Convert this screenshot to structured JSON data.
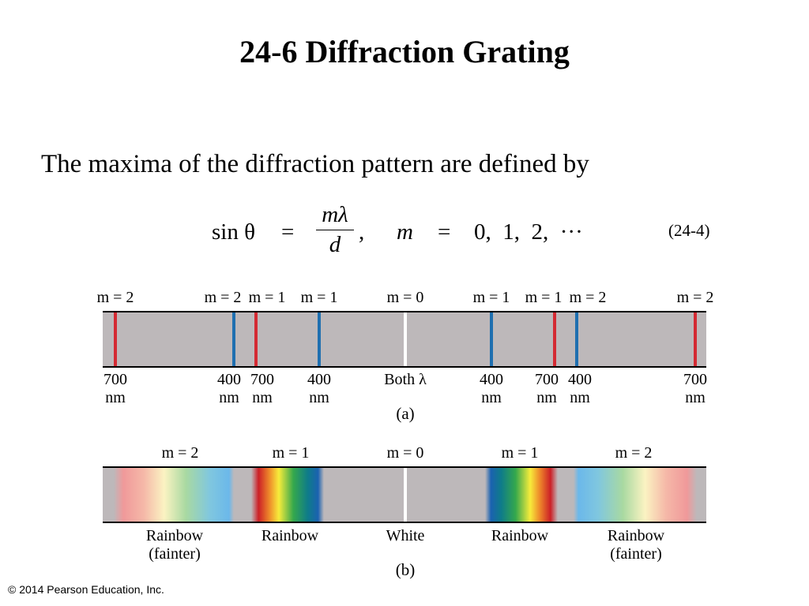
{
  "slide": {
    "title": "24-6 Diffraction Grating",
    "body_text": "The maxima of the diffraction pattern are defined by",
    "equation": {
      "lhs": "sin θ",
      "equals": "=",
      "numerator": "mλ",
      "denominator": "d",
      "comma": ",",
      "m": "m",
      "values": "0,  1,  2,  ···",
      "number": "(24-4)"
    },
    "copyright": "© 2014 Pearson Education, Inc."
  },
  "figure_a": {
    "caption": "(a)",
    "order_labels": [
      "m = 2",
      "m = 2",
      "m = 1",
      "m = 1",
      "m = 0",
      "m = 1",
      "m = 1",
      "m = 2",
      "m = 2"
    ],
    "wavelength_labels": [
      [
        "700",
        "nm"
      ],
      [
        "400",
        "nm"
      ],
      [
        "700",
        "nm"
      ],
      [
        "400",
        "nm"
      ],
      [
        "Both λ",
        ""
      ],
      [
        "400",
        "nm"
      ],
      [
        "700",
        "nm"
      ],
      [
        "400",
        "nm"
      ],
      [
        "700",
        "nm"
      ]
    ],
    "colors": {
      "red": "#d42a33",
      "blue": "#1f6fb0",
      "white": "#ffffff",
      "band": "#bdb8ba"
    }
  },
  "figure_b": {
    "caption": "(b)",
    "order_labels": [
      "m = 2",
      "m = 1",
      "m = 0",
      "m = 1",
      "m = 2"
    ],
    "band_labels": [
      [
        "Rainbow",
        "(fainter)"
      ],
      [
        "Rainbow",
        ""
      ],
      [
        "White",
        ""
      ],
      [
        "Rainbow",
        ""
      ],
      [
        "Rainbow",
        "(fainter)"
      ]
    ]
  }
}
